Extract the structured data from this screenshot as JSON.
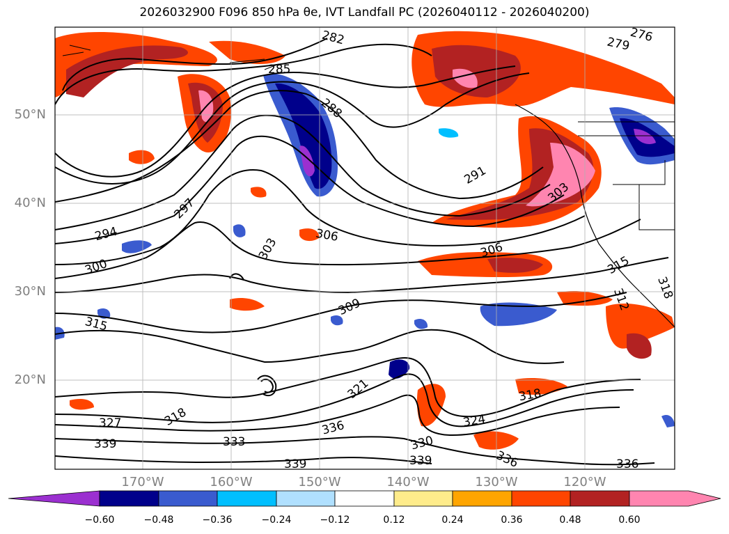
{
  "title": "2026032900 F096 850 hPa θe, IVT Landfall PC (2026040112 - 2026040200)",
  "latitude_labels": [
    "50°N",
    "40°N",
    "30°N",
    "20°N"
  ],
  "longitude_labels": [
    "170°W",
    "160°W",
    "150°W",
    "140°W",
    "130°W",
    "120°W"
  ],
  "contour_labels": [
    "282",
    "276",
    "279",
    "285",
    "288",
    "291",
    "294",
    "297",
    "300",
    "303",
    "306",
    "306",
    "303",
    "309",
    "315",
    "315",
    "312",
    "318",
    "318",
    "321",
    "324",
    "327",
    "330",
    "333",
    "336",
    "336",
    "336",
    "339",
    "339",
    "339",
    "318"
  ],
  "colorbar": {
    "ticks": [
      "−0.60",
      "−0.48",
      "−0.36",
      "−0.24",
      "−0.12",
      "0.12",
      "0.24",
      "0.36",
      "0.48",
      "0.60"
    ],
    "colors": [
      "#9b30d0",
      "#00008b",
      "#3a5bcf",
      "#00bfff",
      "#b0e0ff",
      "#ffffff",
      "#ffec8b",
      "#ffa500",
      "#ff4500",
      "#b22222",
      "#ff85b0",
      "#ff85b0"
    ]
  }
}
